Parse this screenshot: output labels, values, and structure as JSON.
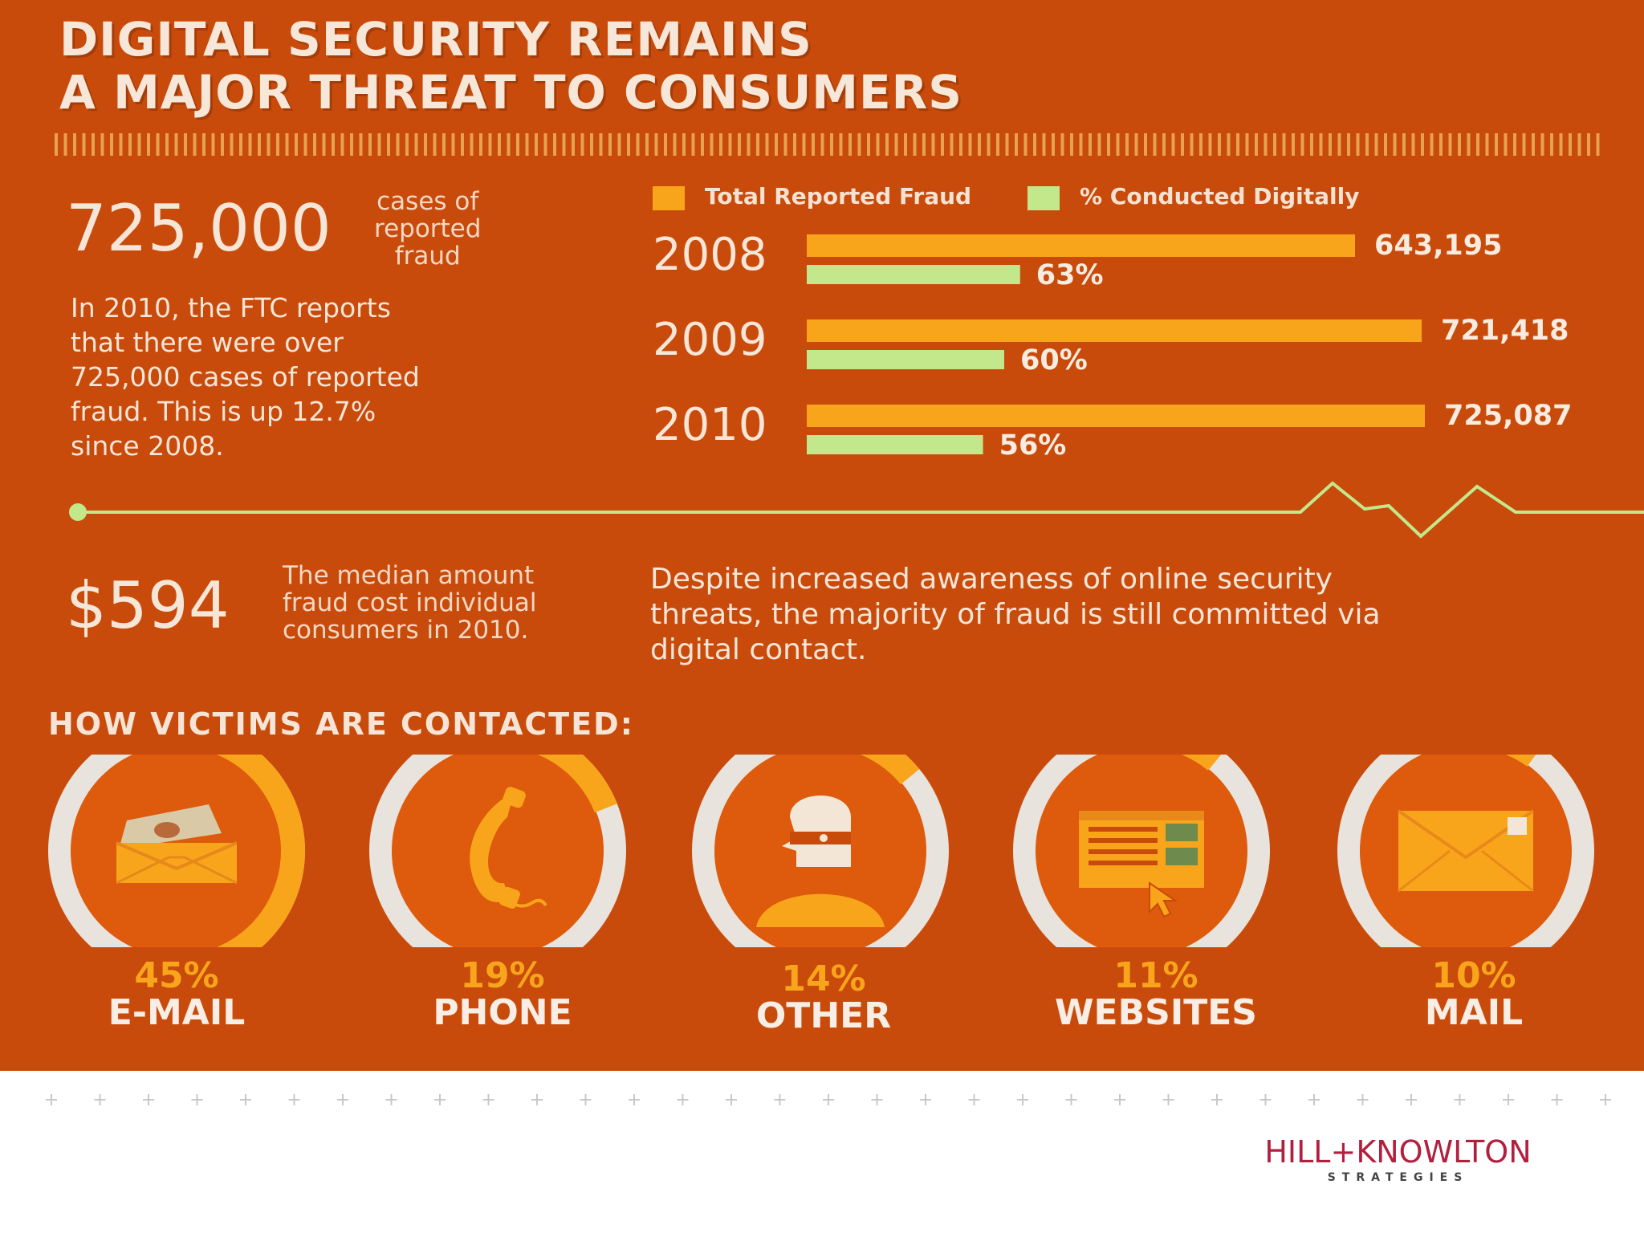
{
  "title": {
    "line1": "DIGITAL SECURITY REMAINS",
    "line2": "A MAJOR THREAT TO CONSUMERS"
  },
  "stat_cases": {
    "value": "725,000",
    "label_lines": [
      "cases of",
      "reported",
      "fraud"
    ]
  },
  "cases_description_lines": [
    "In 2010, the FTC reports",
    "that there were over",
    "725,000 cases of reported",
    "fraud. This is up 12.7%",
    "since 2008."
  ],
  "chart_data": {
    "type": "bar",
    "orientation": "horizontal",
    "categories": [
      "2008",
      "2009",
      "2010"
    ],
    "series": [
      {
        "name": "Total Reported Fraud",
        "values": [
          643195,
          721418,
          725087
        ],
        "labels": [
          "643,195",
          "721,418",
          "725,087"
        ],
        "color": "#F9A51B"
      },
      {
        "name": "% Conducted Digitally",
        "values": [
          63,
          60,
          56
        ],
        "labels": [
          "63%",
          "60%",
          "56%"
        ],
        "color": "#C3E88B"
      }
    ],
    "legend_position": "top"
  },
  "stat_median": {
    "value": "$594",
    "label_lines": [
      "The median amount",
      "fraud cost individual",
      "consumers in 2010."
    ]
  },
  "awareness_lines": [
    "Despite increased awareness of online security",
    "threats, the majority of fraud is still committed via",
    "digital contact."
  ],
  "contact_section": {
    "heading": "HOW VICTIMS ARE CONTACTED:",
    "items": [
      {
        "percent_label": "45%",
        "percent": 45,
        "name": "E-MAIL",
        "icon": "envelope-open-icon"
      },
      {
        "percent_label": "19%",
        "percent": 19,
        "name": "PHONE",
        "icon": "phone-icon"
      },
      {
        "percent_label": "14%",
        "percent": 14,
        "name": "OTHER",
        "icon": "masked-person-icon"
      },
      {
        "percent_label": "11%",
        "percent": 11,
        "name": "WEBSITES",
        "icon": "web-browser-icon"
      },
      {
        "percent_label": "10%",
        "percent": 10,
        "name": "MAIL",
        "icon": "envelope-icon"
      }
    ]
  },
  "brand": {
    "name": "HILL+KNOWLTON",
    "sub": "STRATEGIES"
  },
  "colors": {
    "background": "#C94B0B",
    "accent_orange": "#F9A51B",
    "accent_green": "#C3E88B",
    "ring_track": "#EFE3D8",
    "brand_red": "#B31F3E"
  }
}
